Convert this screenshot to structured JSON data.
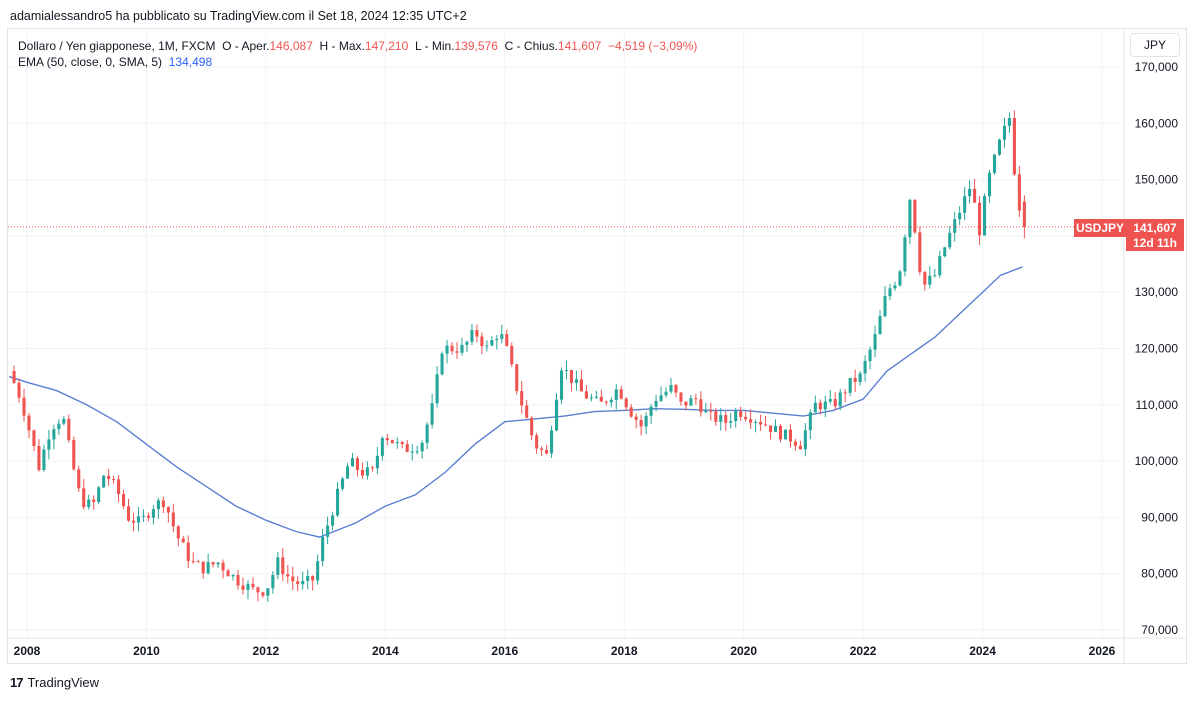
{
  "header": {
    "published_by": "adamialessandro5 ha pubblicato su TradingView.com il Set 18, 2024 12:35 UTC+2"
  },
  "legend": {
    "symbol_desc": "Dollaro / Yen giapponese, 1M, FXCM",
    "o_label": "O - Aper.",
    "o_value": "146,087",
    "h_label": "H - Max.",
    "h_value": "147,210",
    "l_label": "L - Min.",
    "l_value": "139,576",
    "c_label": "C - Chius.",
    "c_value": "141,607",
    "change": "−4,519 (−3,09%)",
    "ema_label": "EMA (50, close, 0, SMA, 5)",
    "ema_value": "134,498"
  },
  "currency_button": "JPY",
  "price_tag": {
    "symbol": "USDJPY",
    "price": "141,607",
    "countdown": "12d 11h"
  },
  "footer": {
    "logo": "17",
    "brand": "TradingView"
  },
  "colors": {
    "up": "#26a69a",
    "down": "#ef5350",
    "ema": "#5b7fd1",
    "grid": "#f0f3fa",
    "axis_text": "#131722"
  },
  "chart_data": {
    "type": "candlestick",
    "x_axis": {
      "ticks": [
        "2008",
        "2010",
        "2012",
        "2014",
        "2016",
        "2018",
        "2020",
        "2022",
        "2024",
        "2026"
      ],
      "range": [
        2007.75,
        2026.4
      ]
    },
    "y_axis": {
      "ticks": [
        "70,000",
        "80,000",
        "90,000",
        "100,000",
        "110,000",
        "120,000",
        "130,000",
        "140,000",
        "150,000",
        "160,000",
        "170,000"
      ],
      "range": [
        69.5,
        171
      ],
      "position": "right"
    },
    "grid": true,
    "series": [
      {
        "name": "USDJPY",
        "kind": "candles",
        "t_start": "2007-09",
        "period": "1M",
        "anchors": [
          [
            2007.7,
            116
          ],
          [
            2007.9,
            111
          ],
          [
            2008.2,
            99
          ],
          [
            2008.4,
            106
          ],
          [
            2008.6,
            108
          ],
          [
            2008.75,
            100
          ],
          [
            2008.9,
            93
          ],
          [
            2009.1,
            92
          ],
          [
            2009.3,
            98
          ],
          [
            2009.5,
            95
          ],
          [
            2009.7,
            90
          ],
          [
            2009.9,
            89
          ],
          [
            2010.1,
            92
          ],
          [
            2010.3,
            93
          ],
          [
            2010.5,
            87
          ],
          [
            2010.75,
            82
          ],
          [
            2010.95,
            81
          ],
          [
            2011.2,
            82
          ],
          [
            2011.5,
            79
          ],
          [
            2011.8,
            77
          ],
          [
            2012.0,
            77
          ],
          [
            2012.2,
            82
          ],
          [
            2012.4,
            79
          ],
          [
            2012.6,
            78
          ],
          [
            2012.8,
            79
          ],
          [
            2012.95,
            86
          ],
          [
            2013.2,
            94
          ],
          [
            2013.4,
            100
          ],
          [
            2013.6,
            98
          ],
          [
            2013.8,
            98
          ],
          [
            2013.95,
            105
          ],
          [
            2014.3,
            102
          ],
          [
            2014.6,
            103
          ],
          [
            2014.8,
            110
          ],
          [
            2014.95,
            120
          ],
          [
            2015.3,
            120
          ],
          [
            2015.5,
            123
          ],
          [
            2015.7,
            120
          ],
          [
            2015.9,
            123
          ],
          [
            2016.0,
            121
          ],
          [
            2016.2,
            113
          ],
          [
            2016.5,
            103
          ],
          [
            2016.7,
            101
          ],
          [
            2016.85,
            111
          ],
          [
            2016.95,
            117
          ],
          [
            2017.3,
            112
          ],
          [
            2017.6,
            110
          ],
          [
            2017.9,
            113
          ],
          [
            2018.1,
            109
          ],
          [
            2018.3,
            106
          ],
          [
            2018.5,
            111
          ],
          [
            2018.8,
            113
          ],
          [
            2018.95,
            110
          ],
          [
            2019.2,
            111
          ],
          [
            2019.4,
            108
          ],
          [
            2019.7,
            107
          ],
          [
            2019.9,
            109
          ],
          [
            2020.1,
            108
          ],
          [
            2020.3,
            107
          ],
          [
            2020.6,
            105
          ],
          [
            2020.8,
            104
          ],
          [
            2020.95,
            103
          ],
          [
            2021.2,
            110
          ],
          [
            2021.5,
            110
          ],
          [
            2021.8,
            114
          ],
          [
            2021.95,
            115
          ],
          [
            2022.2,
            122
          ],
          [
            2022.4,
            130
          ],
          [
            2022.6,
            133
          ],
          [
            2022.8,
            148
          ],
          [
            2022.9,
            138
          ],
          [
            2023.0,
            131
          ],
          [
            2023.2,
            133
          ],
          [
            2023.4,
            139
          ],
          [
            2023.6,
            144
          ],
          [
            2023.8,
            149
          ],
          [
            2023.95,
            141
          ],
          [
            2024.1,
            150
          ],
          [
            2024.3,
            157
          ],
          [
            2024.45,
            161
          ],
          [
            2024.55,
            150
          ],
          [
            2024.67,
            141.6
          ]
        ],
        "last": {
          "open": 146.087,
          "high": 147.21,
          "low": 139.576,
          "close": 141.607
        }
      },
      {
        "name": "EMA (50, close, 0, SMA, 5)",
        "kind": "line",
        "points": [
          [
            2007.7,
            115
          ],
          [
            2008.0,
            114
          ],
          [
            2008.5,
            112.5
          ],
          [
            2009.0,
            110
          ],
          [
            2009.5,
            107
          ],
          [
            2010.0,
            103
          ],
          [
            2010.5,
            99
          ],
          [
            2011.0,
            95.5
          ],
          [
            2011.5,
            92
          ],
          [
            2012.0,
            89.5
          ],
          [
            2012.5,
            87.5
          ],
          [
            2012.9,
            86.5
          ],
          [
            2013.5,
            89
          ],
          [
            2014.0,
            92
          ],
          [
            2014.5,
            94
          ],
          [
            2015.0,
            98
          ],
          [
            2015.5,
            103
          ],
          [
            2016.0,
            107
          ],
          [
            2016.5,
            107.5
          ],
          [
            2017.0,
            108
          ],
          [
            2017.5,
            108.8
          ],
          [
            2018.0,
            109
          ],
          [
            2018.5,
            109.3
          ],
          [
            2019.0,
            109.2
          ],
          [
            2019.5,
            109
          ],
          [
            2020.0,
            109
          ],
          [
            2020.5,
            108.5
          ],
          [
            2021.0,
            108
          ],
          [
            2021.5,
            109
          ],
          [
            2022.0,
            111
          ],
          [
            2022.4,
            116
          ],
          [
            2022.8,
            119
          ],
          [
            2023.2,
            122
          ],
          [
            2023.6,
            126
          ],
          [
            2024.0,
            130
          ],
          [
            2024.3,
            133
          ],
          [
            2024.67,
            134.5
          ]
        ]
      }
    ]
  }
}
